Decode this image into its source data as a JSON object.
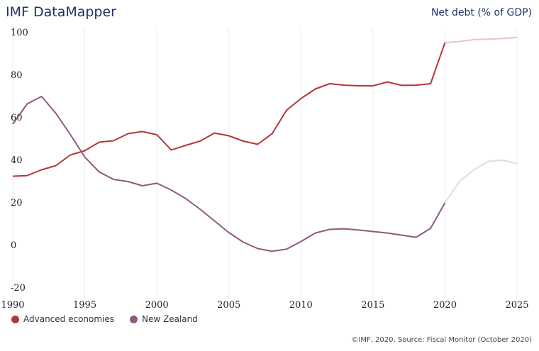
{
  "header": {
    "title": "IMF DataMapper",
    "subtitle": "Net debt (% of GDP)"
  },
  "footer": {
    "source": "©IMF, 2020, Source: Fiscal Monitor (October 2020)"
  },
  "chart_data": {
    "type": "line",
    "title": "IMF DataMapper",
    "ylabel": "Net debt (% of GDP)",
    "xlim": [
      1990,
      2025
    ],
    "ylim": [
      -20,
      100
    ],
    "x_ticks": [
      1990,
      1995,
      2000,
      2005,
      2010,
      2015,
      2020,
      2025
    ],
    "y_ticks": [
      100,
      80,
      60,
      40,
      20,
      0,
      -20
    ],
    "grid": "vertical",
    "legend": "bottom-left",
    "projection_start": 2020,
    "series": [
      {
        "name": "Advanced economies",
        "color": "#b5363a",
        "projection_color": "#e4c6c4",
        "x": [
          1990,
          1991,
          1992,
          1993,
          1994,
          1995,
          1996,
          1997,
          1998,
          1999,
          2000,
          2001,
          2002,
          2003,
          2004,
          2005,
          2006,
          2007,
          2008,
          2009,
          2010,
          2011,
          2012,
          2013,
          2014,
          2015,
          2016,
          2017,
          2018,
          2019,
          2020,
          2021,
          2022,
          2023,
          2024,
          2025
        ],
        "values": [
          32.5,
          32.8,
          35.5,
          37.5,
          42.5,
          44.5,
          48.5,
          49.2,
          52.5,
          53.5,
          52,
          44.8,
          47,
          49,
          52.8,
          51.5,
          49,
          47.5,
          52.5,
          63.5,
          69,
          73.5,
          76,
          75.3,
          75,
          75,
          76.8,
          75.2,
          75.3,
          76,
          95.3,
          95.8,
          96.7,
          96.9,
          97.2,
          97.8
        ]
      },
      {
        "name": "New Zealand",
        "color": "#8e5a80",
        "projection_color": "#dedede",
        "x": [
          1990,
          1991,
          1992,
          1993,
          1994,
          1995,
          1996,
          1997,
          1998,
          1999,
          2000,
          2001,
          2002,
          2003,
          2004,
          2005,
          2006,
          2007,
          2008,
          2009,
          2010,
          2011,
          2012,
          2013,
          2014,
          2015,
          2016,
          2017,
          2018,
          2019,
          2020,
          2021,
          2022,
          2023,
          2024,
          2025
        ],
        "values": [
          57,
          66.5,
          70,
          62,
          52,
          41.5,
          34.5,
          31,
          30,
          28,
          29.2,
          26,
          22,
          17,
          11.5,
          6,
          1.5,
          -1.5,
          -2.8,
          -1.8,
          1.8,
          5.8,
          7.5,
          7.8,
          7.2,
          6.5,
          5.8,
          4.8,
          3.8,
          8,
          20,
          30,
          35.5,
          39.5,
          40,
          38.5
        ]
      }
    ]
  }
}
